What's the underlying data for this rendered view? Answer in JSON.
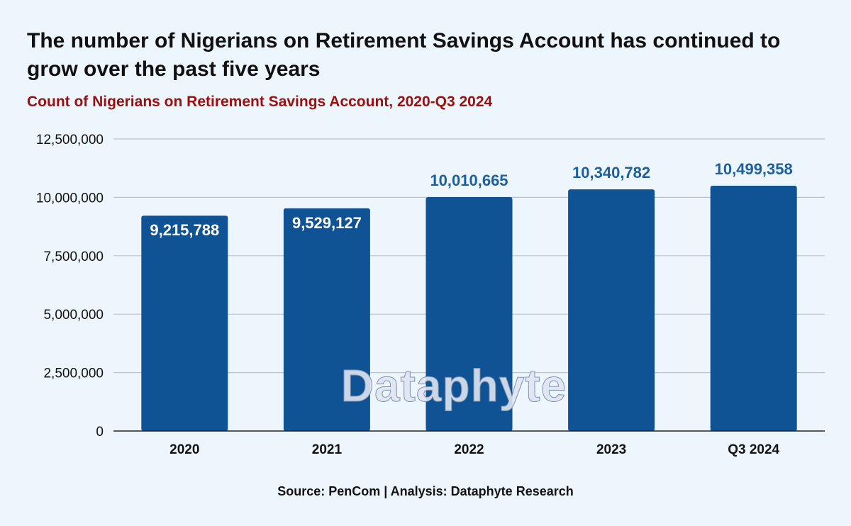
{
  "header": {
    "title": "The number of Nigerians on Retirement Savings Account has continued to grow over the past five years",
    "subtitle": "Count of Nigerians on Retirement Savings Account, 2020-Q3 2024"
  },
  "footer": {
    "source": "Source: PenCom | Analysis: Dataphyte Research"
  },
  "watermark": "Dataphyte",
  "colors": {
    "bar": "#0f5394",
    "label_outside": "#1d5f9e",
    "label_inside": "#ffffff",
    "subtitle": "#a00d0d",
    "grid": "#b9c2cc",
    "background": "#eef6fd"
  },
  "chart_data": {
    "type": "bar",
    "title": "The number of Nigerians on Retirement Savings Account has continued to grow over the past five years",
    "subtitle": "Count of Nigerians on Retirement Savings Account, 2020-Q3 2024",
    "categories": [
      "2020",
      "2021",
      "2022",
      "2023",
      "Q3 2024"
    ],
    "values": [
      9215788,
      9529127,
      10010665,
      10340782,
      10499358
    ],
    "data_labels": [
      "9,215,788",
      "9,529,127",
      "10,010,665",
      "10,340,782",
      "10,499,358"
    ],
    "label_inside": [
      true,
      true,
      false,
      false,
      false
    ],
    "ylim": [
      0,
      12500000
    ],
    "yticks": [
      0,
      2500000,
      5000000,
      7500000,
      10000000,
      12500000
    ],
    "ytick_labels": [
      "0",
      "2,500,000",
      "5,000,000",
      "7,500,000",
      "10,000,000",
      "12,500,000"
    ],
    "xlabel": "",
    "ylabel": "",
    "grid": true,
    "legend": "none"
  }
}
